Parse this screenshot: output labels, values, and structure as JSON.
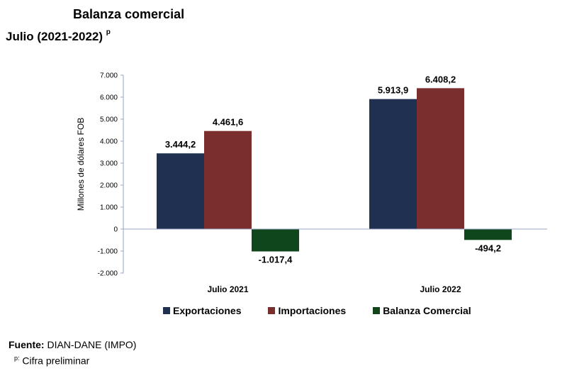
{
  "header": {
    "title": "Balanza comercial",
    "subtitle": "Julio  (2021-2022)",
    "subtitle_marker": "p"
  },
  "chart_data": {
    "type": "bar",
    "title": "Balanza comercial",
    "ylabel": "Millones de dólares FOB",
    "xlabel": "",
    "ylim": [
      -2000,
      7000
    ],
    "yticks": [
      7000,
      6000,
      5000,
      4000,
      3000,
      2000,
      1000,
      0,
      -1000,
      -2000
    ],
    "ytick_labels": [
      "7.000",
      "6.000",
      "5.000",
      "4.000",
      "3.000",
      "2.000",
      "1.000",
      "0",
      "-1.000",
      "-2.000"
    ],
    "categories": [
      "Julio 2021",
      "Julio 2022"
    ],
    "series": [
      {
        "name": "Exportaciones",
        "color": "#1f3050",
        "values": [
          3444.2,
          5913.9
        ],
        "labels": [
          "3.444,2",
          "5.913,9"
        ]
      },
      {
        "name": "Importaciones",
        "color": "#7b2e2e",
        "values": [
          4461.6,
          6408.2
        ],
        "labels": [
          "4.461,6",
          "6.408,2"
        ]
      },
      {
        "name": "Balanza Comercial",
        "color": "#10461c",
        "values": [
          -1017.4,
          -494.2
        ],
        "labels": [
          "-1.017,4",
          "-494,2"
        ]
      }
    ],
    "legend": "bottom",
    "grid": false
  },
  "footer": {
    "source_label": "Fuente:",
    "source_value": " DIAN-DANE (IMPO)",
    "note_marker": "p:",
    "note_text": " Cifra preliminar"
  }
}
